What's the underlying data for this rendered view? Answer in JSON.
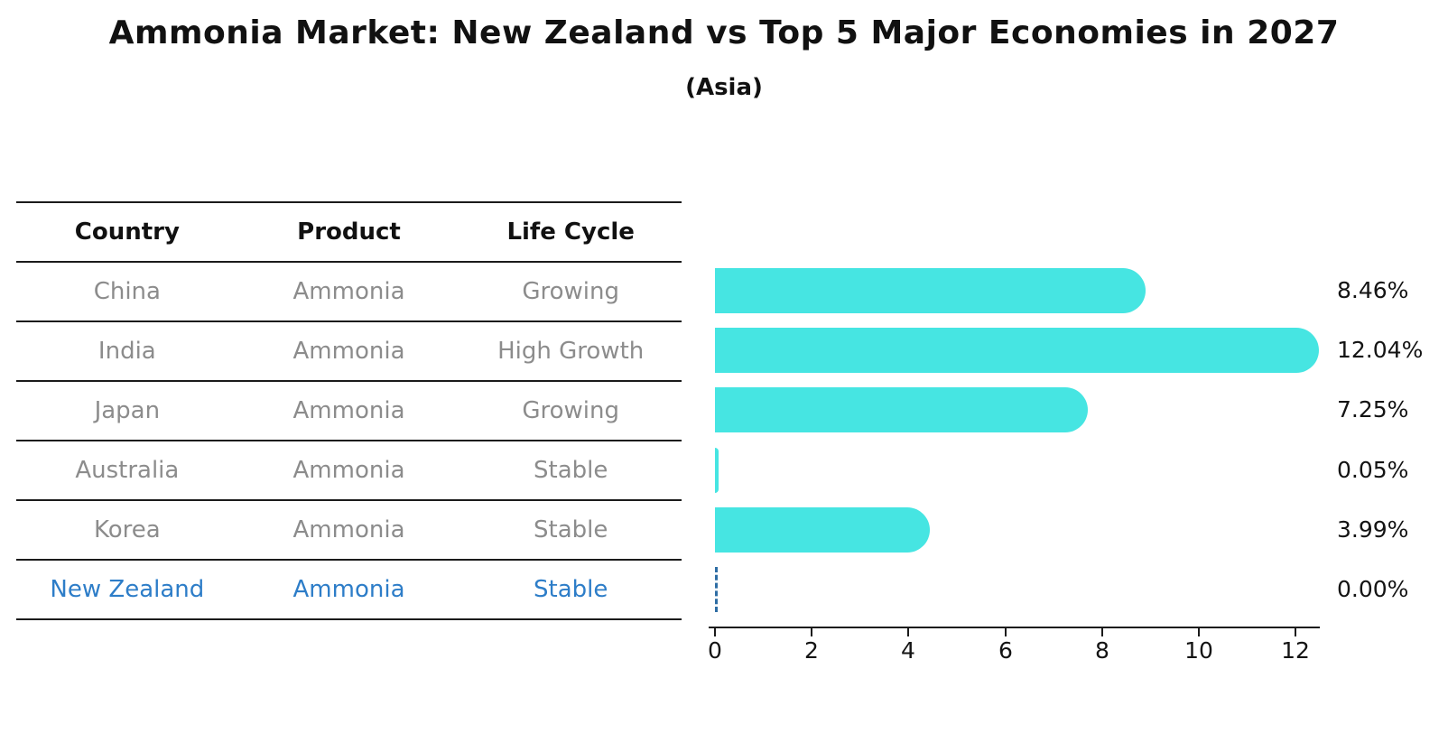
{
  "title": "Ammonia Market: New Zealand vs Top 5 Major Economies in 2027",
  "subtitle": "(Asia)",
  "table": {
    "headers": [
      "Country",
      "Product",
      "Life Cycle"
    ],
    "rows": [
      {
        "country": "China",
        "product": "Ammonia",
        "life_cycle": "Growing",
        "highlight": false
      },
      {
        "country": "India",
        "product": "Ammonia",
        "life_cycle": "High Growth",
        "highlight": false
      },
      {
        "country": "Japan",
        "product": "Ammonia",
        "life_cycle": "Growing",
        "highlight": false
      },
      {
        "country": "Australia",
        "product": "Ammonia",
        "life_cycle": "Stable",
        "highlight": false
      },
      {
        "country": "Korea",
        "product": "Ammonia",
        "life_cycle": "Stable",
        "highlight": false
      },
      {
        "country": "New Zealand",
        "product": "Ammonia",
        "life_cycle": "Stable",
        "highlight": true
      }
    ]
  },
  "chart_data": {
    "type": "bar",
    "orientation": "horizontal",
    "title": "Ammonia Market: New Zealand vs Top 5 Major Economies in 2027",
    "subtitle": "(Asia)",
    "categories": [
      "China",
      "India",
      "Japan",
      "Australia",
      "Korea",
      "New Zealand"
    ],
    "values": [
      8.46,
      12.04,
      7.25,
      0.05,
      3.99,
      0.0
    ],
    "value_labels": [
      "8.46%",
      "12.04%",
      "7.25%",
      "0.05%",
      "3.99%",
      "0.00%"
    ],
    "x_ticks": [
      "0",
      "2",
      "4",
      "6",
      "8",
      "10",
      "12"
    ],
    "x_tick_values": [
      0,
      2,
      4,
      6,
      8,
      10,
      12
    ],
    "xlim": [
      0,
      12.5
    ],
    "xlabel": "",
    "ylabel": "",
    "grid": false,
    "legend": null,
    "bar_color": "#46E5E2",
    "highlight_text_color": "#2d7dc8",
    "zero_marker_color": "#2e6da4",
    "zero_marker_style": "dashed",
    "text_color": "#141414",
    "muted_text_color": "#8c8c8c"
  }
}
